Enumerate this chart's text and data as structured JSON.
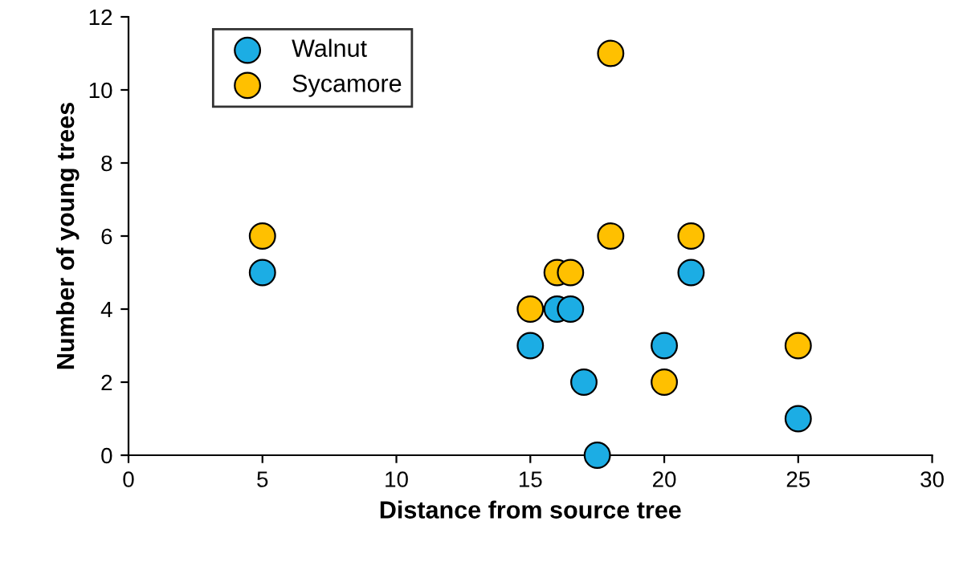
{
  "chart_data": {
    "type": "scatter",
    "xlabel": "Distance from source tree",
    "ylabel": "Number of young trees",
    "xlim": [
      0,
      30
    ],
    "xticks": [
      0,
      5,
      10,
      15,
      20,
      25,
      30
    ],
    "ylim": [
      0,
      12
    ],
    "yticks": [
      0,
      2,
      4,
      6,
      8,
      10,
      12
    ],
    "grid": false,
    "legend": "top left",
    "marker": "circle",
    "series": [
      {
        "name": "Walnut",
        "color": "#1cade4",
        "x": [
          5,
          15,
          16,
          16.5,
          17,
          17.5,
          20,
          21,
          25
        ],
        "values": [
          5,
          3,
          4,
          4,
          2,
          0,
          3,
          5,
          1
        ]
      },
      {
        "name": "Sycamore",
        "color": "#ffc000",
        "x": [
          5,
          15,
          16,
          16.5,
          18,
          18,
          20,
          21,
          25
        ],
        "values": [
          6,
          4,
          5,
          5,
          11,
          6,
          2,
          6,
          3
        ]
      }
    ]
  }
}
